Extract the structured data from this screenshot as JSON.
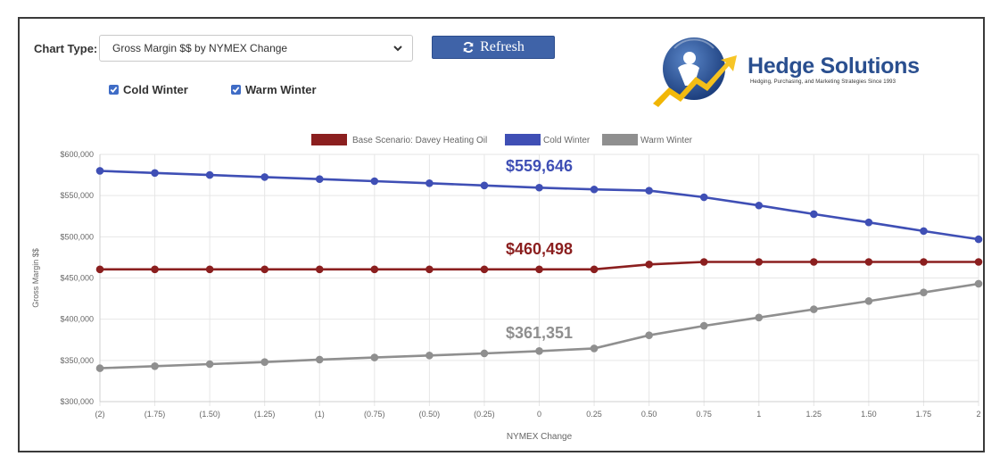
{
  "controls": {
    "chart_type_label": "Chart Type:",
    "chart_type_value": "Gross Margin $$ by NYMEX Change",
    "refresh_label": "Refresh",
    "checkboxes": [
      {
        "label": "Cold Winter",
        "checked": true
      },
      {
        "label": "Warm Winter",
        "checked": true
      }
    ]
  },
  "logo": {
    "name": "Hedge Solutions",
    "tagline": "Hedging, Purchasing, and Marketing Strategies Since 1993"
  },
  "chart_data": {
    "type": "line",
    "xlabel": "NYMEX Change",
    "ylabel": "Gross Margin $$",
    "ylim": [
      300000,
      600000
    ],
    "ytick_labels": [
      "$300,000",
      "$350,000",
      "$400,000",
      "$450,000",
      "$500,000",
      "$550,000",
      "$600,000"
    ],
    "categories": [
      "(2)",
      "(1.75)",
      "(1.50)",
      "(1.25)",
      "(1)",
      "(0.75)",
      "(0.50)",
      "(0.25)",
      "0",
      "0.25",
      "0.50",
      "0.75",
      "1",
      "1.25",
      "1.50",
      "1.75",
      "2"
    ],
    "grid": true,
    "legend_position": "top-center",
    "series": [
      {
        "name": "Base Scenario: Davey Heating Oil",
        "color": "#8b1f1f",
        "values": [
          460498,
          460498,
          460498,
          460498,
          460498,
          460498,
          460498,
          460498,
          460498,
          460498,
          466500,
          469500,
          469500,
          469500,
          469500,
          469500,
          469500
        ]
      },
      {
        "name": "Cold Winter",
        "color": "#3f4fb5",
        "values": [
          580000,
          577500,
          575000,
          572500,
          570000,
          567500,
          565000,
          562300,
          559646,
          557500,
          556000,
          548000,
          538000,
          527500,
          517500,
          507000,
          497000
        ]
      },
      {
        "name": "Warm Winter",
        "color": "#8f8f8f",
        "values": [
          340500,
          343000,
          345500,
          348000,
          351000,
          353500,
          356000,
          358500,
          361351,
          364500,
          380500,
          392000,
          402000,
          412000,
          422000,
          432500,
          443000
        ]
      }
    ],
    "annotations": [
      {
        "text": "$559,646",
        "color": "#3f4fb5"
      },
      {
        "text": "$460,498",
        "color": "#8b1f1f"
      },
      {
        "text": "$361,351",
        "color": "#8f8f8f"
      }
    ]
  }
}
